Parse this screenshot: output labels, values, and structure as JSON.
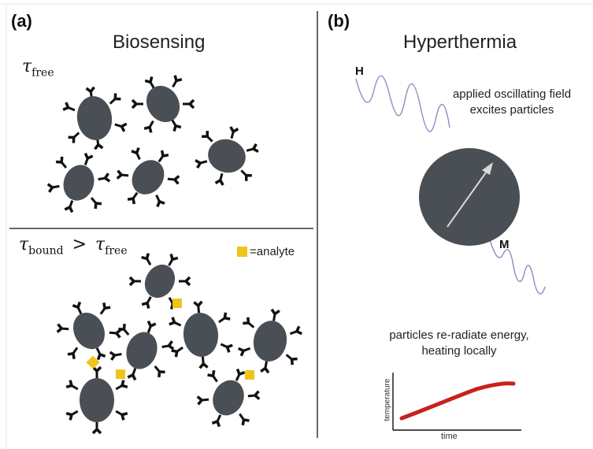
{
  "panel_a": {
    "letter": "(a)",
    "title": "Biosensing",
    "tau_symbol": "τ",
    "tau_free_sub": "free",
    "tau_bound_sub": "bound",
    "greater_than": ">",
    "legend_label": "=analyte"
  },
  "panel_b": {
    "letter": "(b)",
    "title": "Hyperthermia",
    "field_label": "H",
    "magnetization_label": "M",
    "caption_top_line1": "applied oscillating field",
    "caption_top_line2": "excites particles",
    "caption_bottom_line1": "particles re-radiate energy,",
    "caption_bottom_line2": "heating locally",
    "graph_ylabel": "temperature",
    "graph_xlabel": "time"
  },
  "colors": {
    "particle": "#4a4f55",
    "antibody": "#111111",
    "analyte": "#f0c419",
    "wave": "#8c8cc4",
    "curve": "#c8221e",
    "arrow": "#d9d9d9"
  },
  "icons": {
    "particle": "nanoparticle-with-antibodies",
    "analyte": "yellow-square"
  }
}
